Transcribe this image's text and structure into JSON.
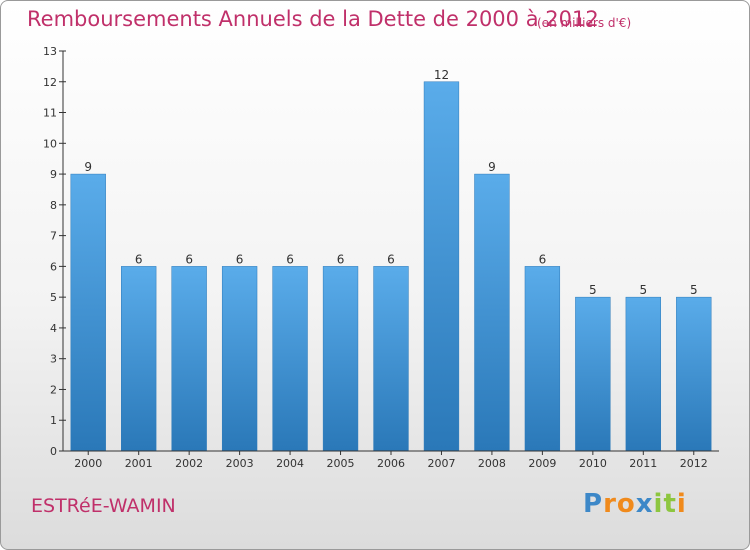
{
  "chart_data": {
    "type": "bar",
    "title": "Remboursements Annuels de la Dette de 2000 à 2012",
    "subtitle": "(en milliers d'€)",
    "categories": [
      "2000",
      "2001",
      "2002",
      "2003",
      "2004",
      "2005",
      "2006",
      "2007",
      "2008",
      "2009",
      "2010",
      "2011",
      "2012"
    ],
    "values": [
      9,
      6,
      6,
      6,
      6,
      6,
      6,
      12,
      9,
      6,
      5,
      5,
      5
    ],
    "xlabel": "",
    "ylabel": "",
    "ylim": [
      0,
      13
    ],
    "yticks": [
      0,
      1,
      2,
      3,
      4,
      5,
      6,
      7,
      8,
      9,
      10,
      11,
      12,
      13
    ],
    "grid": false,
    "legend": "none",
    "bar_color": "#3d8fd0"
  },
  "footer": {
    "town": "ESTRéE-WAMIN",
    "logo_letters": [
      "P",
      "r",
      "o",
      "x",
      "i",
      "t",
      "i"
    ],
    "logo_colors": [
      "#3d88c8",
      "#f08a1c",
      "#f08a1c",
      "#3d88c8",
      "#8dc63f",
      "#8dc63f",
      "#f08a1c"
    ]
  },
  "colors": {
    "title": "#c0306a",
    "axis": "#333333"
  }
}
